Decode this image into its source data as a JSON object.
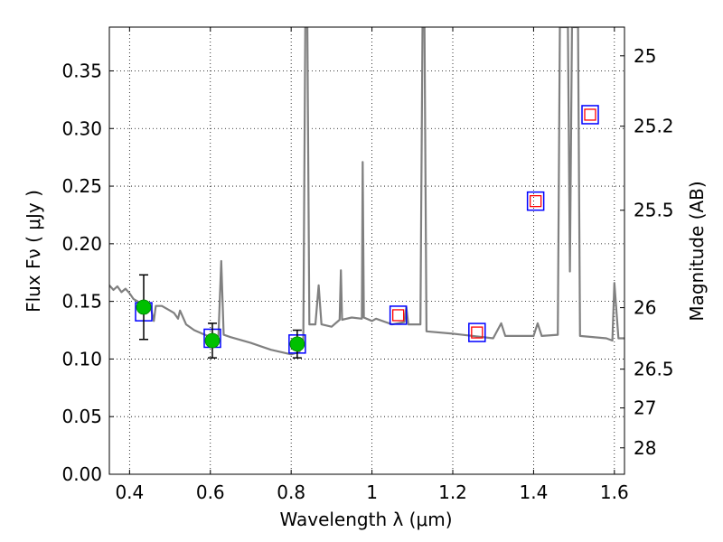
{
  "chart_data": {
    "type": "scatter",
    "xlabel": "Wavelength  λ (μm)",
    "ylabel": "Flux  Fν  ( μJy )",
    "y2label": "Magnitude (AB)",
    "xlim": [
      0.35,
      1.625
    ],
    "ylim": [
      0.0,
      0.388
    ],
    "x_ticks": [
      0.4,
      0.6,
      0.8,
      1.0,
      1.2,
      1.4,
      1.6
    ],
    "x_tick_labels": [
      "0.4",
      "0.6",
      "0.8",
      "1",
      "1.2",
      "1.4",
      "1.6"
    ],
    "y_ticks": [
      0.0,
      0.05,
      0.1,
      0.15,
      0.2,
      0.25,
      0.3,
      0.35
    ],
    "y_tick_labels": [
      "0.00",
      "0.05",
      "0.10",
      "0.15",
      "0.20",
      "0.25",
      "0.30",
      "0.35"
    ],
    "y2_ticks": [
      25,
      25.2,
      25.5,
      26,
      26.5,
      27,
      28
    ],
    "y2_tick_labels": [
      "25",
      "25.2",
      "25.5",
      "26",
      "26.5",
      "27",
      "28"
    ],
    "grid": true,
    "colors": {
      "model": "#808080",
      "observed": "#00c000",
      "model_box": "#0000ff",
      "model_box_inner": "#ff0000",
      "errorbar": "#000000"
    },
    "series": [
      {
        "type": "line",
        "points": [
          [
            0.35,
            0.164
          ],
          [
            0.36,
            0.16
          ],
          [
            0.37,
            0.163
          ],
          [
            0.38,
            0.158
          ],
          [
            0.39,
            0.161
          ],
          [
            0.4,
            0.157
          ],
          [
            0.41,
            0.152
          ],
          [
            0.42,
            0.15
          ],
          [
            0.43,
            0.144
          ],
          [
            0.44,
            0.141
          ],
          [
            0.45,
            0.148
          ],
          [
            0.46,
            0.133
          ],
          [
            0.465,
            0.146
          ],
          [
            0.48,
            0.146
          ],
          [
            0.5,
            0.142
          ],
          [
            0.51,
            0.14
          ],
          [
            0.52,
            0.135
          ],
          [
            0.525,
            0.142
          ],
          [
            0.54,
            0.13
          ],
          [
            0.56,
            0.125
          ],
          [
            0.58,
            0.122
          ],
          [
            0.6,
            0.119
          ],
          [
            0.615,
            0.118
          ],
          [
            0.62,
            0.12
          ],
          [
            0.627,
            0.185
          ],
          [
            0.633,
            0.121
          ],
          [
            0.65,
            0.119
          ],
          [
            0.7,
            0.114
          ],
          [
            0.75,
            0.108
          ],
          [
            0.8,
            0.104
          ],
          [
            0.82,
            0.106
          ],
          [
            0.83,
            0.116
          ],
          [
            0.835,
            0.388
          ],
          [
            0.84,
            0.388
          ],
          [
            0.845,
            0.13
          ],
          [
            0.86,
            0.13
          ],
          [
            0.868,
            0.164
          ],
          [
            0.875,
            0.13
          ],
          [
            0.9,
            0.128
          ],
          [
            0.92,
            0.134
          ],
          [
            0.923,
            0.177
          ],
          [
            0.926,
            0.134
          ],
          [
            0.95,
            0.136
          ],
          [
            0.975,
            0.135
          ],
          [
            0.977,
            0.271
          ],
          [
            0.98,
            0.136
          ],
          [
            1.0,
            0.133
          ],
          [
            1.01,
            0.135
          ],
          [
            1.05,
            0.13
          ],
          [
            1.08,
            0.132
          ],
          [
            1.085,
            0.145
          ],
          [
            1.09,
            0.13
          ],
          [
            1.12,
            0.13
          ],
          [
            1.125,
            0.388
          ],
          [
            1.13,
            0.388
          ],
          [
            1.135,
            0.124
          ],
          [
            1.2,
            0.122
          ],
          [
            1.3,
            0.118
          ],
          [
            1.32,
            0.131
          ],
          [
            1.33,
            0.12
          ],
          [
            1.4,
            0.12
          ],
          [
            1.41,
            0.131
          ],
          [
            1.42,
            0.12
          ],
          [
            1.46,
            0.121
          ],
          [
            1.465,
            0.388
          ],
          [
            1.475,
            0.388
          ],
          [
            1.485,
            0.388
          ],
          [
            1.49,
            0.176
          ],
          [
            1.495,
            0.388
          ],
          [
            1.51,
            0.388
          ],
          [
            1.515,
            0.12
          ],
          [
            1.58,
            0.118
          ],
          [
            1.595,
            0.116
          ],
          [
            1.6,
            0.166
          ],
          [
            1.61,
            0.118
          ],
          [
            1.625,
            0.118
          ]
        ]
      },
      {
        "type": "scatter",
        "marker": "square-blue",
        "points": [
          [
            0.435,
            0.141
          ],
          [
            0.605,
            0.118
          ],
          [
            0.815,
            0.113
          ],
          [
            1.065,
            0.138
          ],
          [
            1.26,
            0.123
          ],
          [
            1.405,
            0.237
          ],
          [
            1.54,
            0.312
          ]
        ]
      },
      {
        "type": "scatter",
        "marker": "square-red",
        "points": [
          [
            1.065,
            0.138
          ],
          [
            1.26,
            0.123
          ],
          [
            1.405,
            0.237
          ],
          [
            1.54,
            0.312
          ]
        ]
      },
      {
        "type": "scatter",
        "marker": "circle-green",
        "points": [
          [
            0.435,
            0.145
          ],
          [
            0.605,
            0.116
          ],
          [
            0.815,
            0.113
          ]
        ],
        "yerr": [
          0.028,
          0.015,
          0.012
        ]
      }
    ]
  }
}
